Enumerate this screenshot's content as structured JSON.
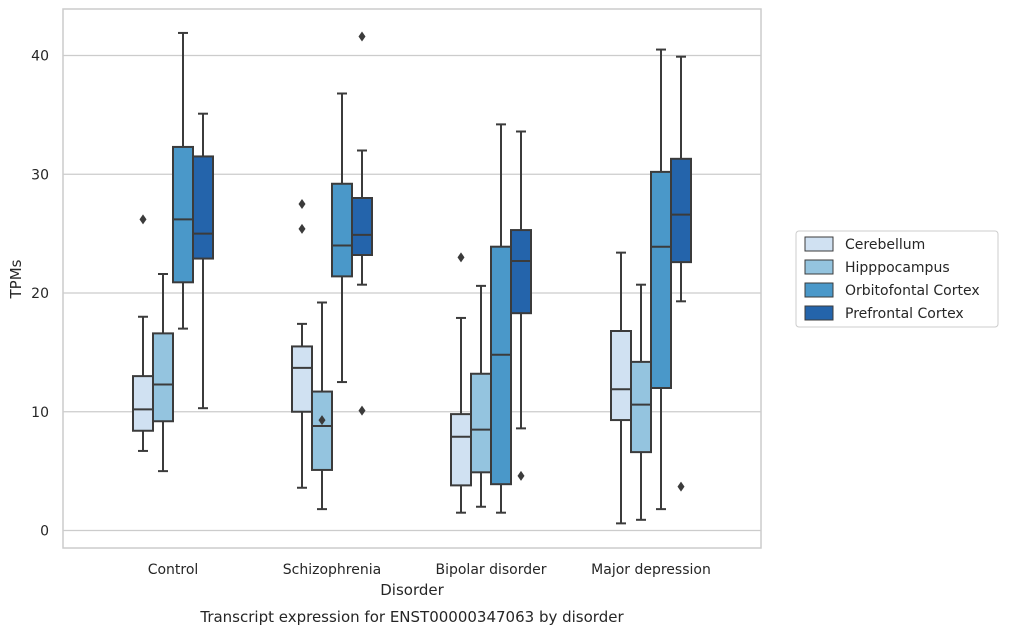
{
  "chart_data": {
    "type": "box",
    "title": "",
    "caption": "Transcript expression for ENST00000347063 by disorder",
    "xlabel": "Disorder",
    "ylabel": "TPMs",
    "ylim": [
      -1.5,
      43.5
    ],
    "yticks": [
      0,
      10,
      20,
      30,
      40
    ],
    "grid": "horizontal",
    "legend_position": "right",
    "categories": [
      "Control",
      "Schizophrenia",
      "Bipolar disorder",
      "Major depression"
    ],
    "series": [
      {
        "name": "Cerebellum",
        "color": "#d0e1f2",
        "boxes": [
          {
            "whisker_low": 6.7,
            "q1": 8.4,
            "median": 10.2,
            "q3": 13.0,
            "whisker_high": 18.0,
            "outliers": [
              26.2
            ]
          },
          {
            "whisker_low": 3.6,
            "q1": 10.0,
            "median": 13.7,
            "q3": 15.5,
            "whisker_high": 17.4,
            "outliers": [
              27.5,
              25.4
            ]
          },
          {
            "whisker_low": 1.5,
            "q1": 3.8,
            "median": 7.9,
            "q3": 9.8,
            "whisker_high": 17.9,
            "outliers": [
              23.0
            ]
          },
          {
            "whisker_low": 0.6,
            "q1": 9.3,
            "median": 11.9,
            "q3": 16.8,
            "whisker_high": 23.4,
            "outliers": []
          }
        ]
      },
      {
        "name": "Hipppocampus",
        "color": "#94c4df",
        "boxes": [
          {
            "whisker_low": 5.0,
            "q1": 9.2,
            "median": 12.3,
            "q3": 16.6,
            "whisker_high": 21.6,
            "outliers": []
          },
          {
            "whisker_low": 1.8,
            "q1": 5.1,
            "median": 8.8,
            "q3": 11.7,
            "whisker_high": 19.2,
            "outliers": [
              9.3
            ]
          },
          {
            "whisker_low": 2.0,
            "q1": 4.9,
            "median": 8.5,
            "q3": 13.2,
            "whisker_high": 20.6,
            "outliers": []
          },
          {
            "whisker_low": 0.9,
            "q1": 6.6,
            "median": 10.6,
            "q3": 14.2,
            "whisker_high": 20.7,
            "outliers": []
          }
        ]
      },
      {
        "name": "Orbitofontal Cortex",
        "color": "#4a98c9",
        "boxes": [
          {
            "whisker_low": 17.0,
            "q1": 20.9,
            "median": 26.2,
            "q3": 32.3,
            "whisker_high": 41.9,
            "outliers": []
          },
          {
            "whisker_low": 12.5,
            "q1": 21.4,
            "median": 24.0,
            "q3": 29.2,
            "whisker_high": 36.8,
            "outliers": []
          },
          {
            "whisker_low": 1.5,
            "q1": 3.9,
            "median": 14.8,
            "q3": 23.9,
            "whisker_high": 34.2,
            "outliers": []
          },
          {
            "whisker_low": 1.8,
            "q1": 12.0,
            "median": 23.9,
            "q3": 30.2,
            "whisker_high": 40.5,
            "outliers": []
          }
        ]
      },
      {
        "name": "Prefrontal Cortex",
        "color": "#2464ab",
        "boxes": [
          {
            "whisker_low": 10.3,
            "q1": 22.9,
            "median": 25.0,
            "q3": 31.5,
            "whisker_high": 35.1,
            "outliers": []
          },
          {
            "whisker_low": 20.7,
            "q1": 23.2,
            "median": 24.9,
            "q3": 28.0,
            "whisker_high": 32.0,
            "outliers": [
              41.6,
              10.1
            ]
          },
          {
            "whisker_low": 8.6,
            "q1": 18.3,
            "median": 22.7,
            "q3": 25.3,
            "whisker_high": 33.6,
            "outliers": [
              4.6
            ]
          },
          {
            "whisker_low": 19.3,
            "q1": 22.6,
            "median": 26.6,
            "q3": 31.3,
            "whisker_high": 39.9,
            "outliers": [
              3.7
            ]
          }
        ]
      }
    ]
  }
}
